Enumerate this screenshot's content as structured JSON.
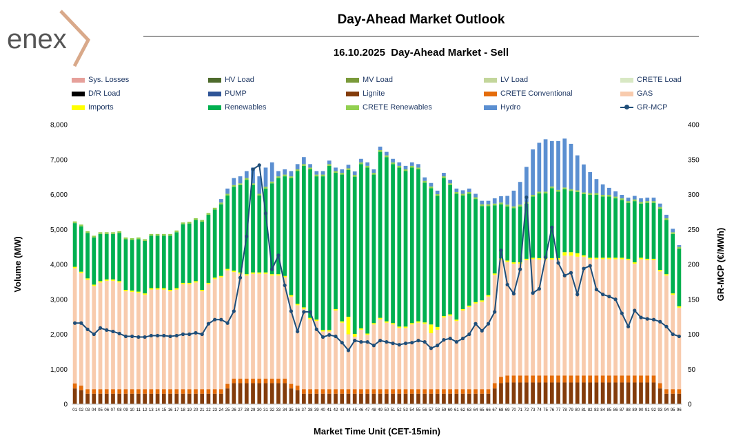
{
  "header": {
    "title": "Day-Ahead Market Outlook",
    "subtitle": "16.10.2025  Day-Ahead Market - Sell",
    "logo_text": "enex"
  },
  "colors": {
    "sys_losses": "#e6a09a",
    "hv_load": "#4e6b2c",
    "mv_load": "#7a9a3a",
    "lv_load": "#c3d69b",
    "crete_load": "#d8e8c4",
    "dr_load": "#000000",
    "pump": "#2f5597",
    "lignite": "#833c0b",
    "crete_conventional": "#e46c0a",
    "gas": "#f8cbad",
    "imports": "#ffff00",
    "renewables": "#00b050",
    "crete_renewables": "#92d050",
    "hydro": "#5b8fd1",
    "gr_mcp": "#1f4e79"
  },
  "legend": [
    {
      "key": "sys_losses",
      "label": "Sys. Losses",
      "kind": "bar"
    },
    {
      "key": "hv_load",
      "label": "HV Load",
      "kind": "bar"
    },
    {
      "key": "mv_load",
      "label": "MV Load",
      "kind": "bar"
    },
    {
      "key": "lv_load",
      "label": "LV Load",
      "kind": "bar"
    },
    {
      "key": "crete_load",
      "label": "CRETE Load",
      "kind": "bar"
    },
    {
      "key": "dr_load",
      "label": "D/R Load",
      "kind": "bar"
    },
    {
      "key": "pump",
      "label": "PUMP",
      "kind": "bar"
    },
    {
      "key": "lignite",
      "label": "Lignite",
      "kind": "bar"
    },
    {
      "key": "crete_conventional",
      "label": "CRETE Conventional",
      "kind": "bar"
    },
    {
      "key": "gas",
      "label": "GAS",
      "kind": "bar"
    },
    {
      "key": "imports",
      "label": "Imports",
      "kind": "bar"
    },
    {
      "key": "renewables",
      "label": "Renewables",
      "kind": "bar"
    },
    {
      "key": "crete_renewables",
      "label": "CRETE Renewables",
      "kind": "bar"
    },
    {
      "key": "hydro",
      "label": "Hydro",
      "kind": "bar"
    },
    {
      "key": "gr_mcp",
      "label": "GR-MCP",
      "kind": "line"
    }
  ],
  "chart_data": {
    "type": "bar",
    "stacked": true,
    "title": "16.10.2025  Day-Ahead Market - Sell",
    "xlabel": "Market Time Unit (CET-15min)",
    "ylabel": "Volume (MW)",
    "y2label": "GR-MCP (€/MWh)",
    "ylim": [
      0,
      8000
    ],
    "y2lim": [
      0,
      400
    ],
    "yticks": [
      "0",
      "1,000",
      "2,000",
      "3,000",
      "4,000",
      "5,000",
      "6,000",
      "7,000",
      "8,000"
    ],
    "y2ticks": [
      "0",
      "50",
      "100",
      "150",
      "200",
      "250",
      "300",
      "350",
      "400"
    ],
    "categories": [
      "01",
      "02",
      "03",
      "04",
      "05",
      "06",
      "07",
      "08",
      "09",
      "10",
      "11",
      "12",
      "13",
      "14",
      "15",
      "16",
      "17",
      "18",
      "19",
      "20",
      "21",
      "22",
      "23",
      "24",
      "25",
      "26",
      "27",
      "28",
      "29",
      "30",
      "31",
      "32",
      "33",
      "34",
      "35",
      "36",
      "37",
      "38",
      "39",
      "40",
      "41",
      "42",
      "43",
      "44",
      "45",
      "46",
      "47",
      "48",
      "49",
      "50",
      "51",
      "52",
      "53",
      "54",
      "55",
      "56",
      "57",
      "58",
      "59",
      "60",
      "61",
      "62",
      "63",
      "64",
      "65",
      "66",
      "67",
      "68",
      "69",
      "70",
      "71",
      "72",
      "73",
      "74",
      "75",
      "76",
      "77",
      "78",
      "79",
      "80",
      "81",
      "82",
      "83",
      "84",
      "85",
      "86",
      "87",
      "88",
      "89",
      "90",
      "91",
      "92",
      "93",
      "94",
      "95",
      "96"
    ],
    "series": [
      {
        "name": "Lignite",
        "key": "lignite",
        "values": [
          450,
          400,
          300,
          300,
          300,
          300,
          300,
          300,
          300,
          300,
          300,
          300,
          300,
          300,
          300,
          300,
          300,
          300,
          300,
          300,
          300,
          300,
          300,
          300,
          450,
          600,
          600,
          600,
          600,
          600,
          600,
          600,
          600,
          600,
          450,
          400,
          300,
          300,
          300,
          300,
          300,
          300,
          300,
          300,
          300,
          300,
          300,
          300,
          300,
          300,
          300,
          300,
          300,
          300,
          300,
          300,
          300,
          300,
          300,
          300,
          300,
          300,
          300,
          300,
          300,
          300,
          450,
          600,
          620,
          620,
          620,
          620,
          620,
          620,
          620,
          620,
          620,
          620,
          620,
          620,
          620,
          620,
          620,
          620,
          620,
          620,
          620,
          620,
          620,
          620,
          620,
          620,
          450,
          300,
          300,
          300
        ]
      },
      {
        "name": "CRETE Conventional",
        "key": "crete_conventional",
        "values": [
          140,
          130,
          130,
          130,
          130,
          130,
          130,
          130,
          130,
          130,
          130,
          130,
          130,
          130,
          130,
          130,
          130,
          130,
          130,
          130,
          130,
          130,
          130,
          130,
          130,
          130,
          130,
          130,
          130,
          130,
          130,
          130,
          130,
          130,
          130,
          130,
          130,
          130,
          130,
          130,
          130,
          130,
          130,
          130,
          130,
          130,
          130,
          130,
          130,
          130,
          130,
          130,
          130,
          130,
          130,
          130,
          130,
          130,
          130,
          130,
          130,
          130,
          130,
          130,
          130,
          130,
          150,
          180,
          200,
          200,
          200,
          200,
          200,
          200,
          200,
          200,
          200,
          200,
          200,
          200,
          200,
          200,
          200,
          200,
          200,
          200,
          200,
          200,
          200,
          200,
          200,
          200,
          150,
          130,
          130,
          130
        ]
      },
      {
        "name": "GAS",
        "key": "gas",
        "values": [
          3300,
          3220,
          3130,
          2950,
          3050,
          3100,
          3100,
          3050,
          2800,
          2780,
          2750,
          2700,
          2850,
          2850,
          2850,
          2800,
          2850,
          3000,
          3000,
          3050,
          2800,
          3000,
          3150,
          3200,
          3250,
          3050,
          3000,
          2950,
          3000,
          3000,
          3000,
          2950,
          2950,
          2900,
          2500,
          2300,
          2300,
          2000,
          1950,
          1650,
          1650,
          2250,
          1900,
          1570,
          1500,
          1700,
          1550,
          1850,
          2000,
          1900,
          1850,
          1750,
          1750,
          1850,
          1900,
          1870,
          1600,
          1700,
          2050,
          2100,
          1950,
          2250,
          2350,
          2450,
          2500,
          2650,
          3100,
          3350,
          3250,
          3200,
          3200,
          3300,
          3330,
          3320,
          3320,
          3320,
          3320,
          3430,
          3430,
          3400,
          3400,
          3330,
          3330,
          3330,
          3330,
          3330,
          3330,
          3300,
          3200,
          3330,
          3300,
          3300,
          3200,
          3250,
          2700,
          2330
        ]
      },
      {
        "name": "Imports",
        "key": "imports",
        "values": [
          40,
          40,
          40,
          40,
          40,
          40,
          40,
          40,
          40,
          40,
          40,
          40,
          40,
          40,
          40,
          40,
          40,
          40,
          40,
          40,
          40,
          40,
          40,
          40,
          40,
          40,
          40,
          40,
          40,
          40,
          40,
          40,
          40,
          40,
          40,
          40,
          40,
          40,
          40,
          40,
          40,
          40,
          40,
          500,
          80,
          40,
          40,
          40,
          40,
          40,
          40,
          40,
          40,
          40,
          40,
          40,
          250,
          80,
          40,
          40,
          40,
          40,
          40,
          40,
          40,
          40,
          40,
          40,
          40,
          40,
          40,
          40,
          40,
          40,
          40,
          40,
          40,
          100,
          100,
          100,
          40,
          40,
          40,
          40,
          40,
          40,
          40,
          40,
          40,
          40,
          40,
          40,
          40,
          40,
          40,
          40
        ]
      },
      {
        "name": "Renewables",
        "key": "renewables",
        "values": [
          1250,
          1300,
          1300,
          1350,
          1350,
          1300,
          1300,
          1380,
          1450,
          1450,
          1500,
          1500,
          1500,
          1500,
          1500,
          1550,
          1600,
          1680,
          1700,
          1750,
          1950,
          1950,
          1950,
          2050,
          2100,
          2400,
          2500,
          2700,
          2500,
          2200,
          2400,
          2600,
          2750,
          2850,
          3350,
          3800,
          4050,
          4250,
          4100,
          4400,
          4700,
          3900,
          4200,
          4200,
          4500,
          4700,
          4750,
          4250,
          4750,
          4700,
          4550,
          4550,
          4450,
          4450,
          4350,
          4000,
          3900,
          3750,
          3950,
          3700,
          3600,
          3250,
          3200,
          2950,
          2700,
          2550,
          1950,
          1550,
          1550,
          1550,
          1600,
          1580,
          1750,
          1850,
          1850,
          2000,
          1900,
          1800,
          1750,
          1750,
          1750,
          1800,
          1800,
          1750,
          1750,
          1700,
          1650,
          1600,
          1750,
          1550,
          1600,
          1600,
          1750,
          1550,
          1700,
          1650
        ]
      },
      {
        "name": "CRETE Renewables",
        "key": "crete_renewables",
        "values": [
          50,
          50,
          50,
          50,
          50,
          50,
          50,
          50,
          50,
          50,
          50,
          50,
          50,
          50,
          50,
          50,
          50,
          50,
          50,
          50,
          50,
          50,
          50,
          50,
          50,
          50,
          50,
          50,
          50,
          50,
          50,
          50,
          50,
          50,
          50,
          50,
          50,
          50,
          50,
          50,
          50,
          50,
          50,
          50,
          50,
          50,
          50,
          50,
          50,
          50,
          50,
          50,
          50,
          50,
          50,
          50,
          50,
          50,
          50,
          50,
          50,
          50,
          50,
          50,
          50,
          50,
          50,
          50,
          50,
          50,
          50,
          50,
          50,
          50,
          50,
          50,
          50,
          50,
          50,
          50,
          50,
          50,
          50,
          50,
          50,
          50,
          50,
          50,
          50,
          50,
          50,
          50,
          50,
          50,
          50,
          50
        ]
      },
      {
        "name": "Hydro",
        "key": "hydro",
        "values": [
          0,
          0,
          0,
          0,
          0,
          0,
          0,
          0,
          0,
          0,
          0,
          0,
          0,
          0,
          0,
          0,
          0,
          0,
          0,
          0,
          0,
          0,
          0,
          100,
          150,
          200,
          200,
          200,
          450,
          500,
          550,
          550,
          150,
          150,
          150,
          150,
          200,
          100,
          100,
          100,
          100,
          100,
          100,
          100,
          100,
          100,
          100,
          100,
          100,
          100,
          100,
          100,
          100,
          100,
          100,
          100,
          100,
          100,
          100,
          100,
          100,
          100,
          100,
          100,
          100,
          100,
          150,
          180,
          250,
          450,
          650,
          1000,
          1300,
          1400,
          1500,
          1300,
          1400,
          1400,
          1300,
          1000,
          800,
          600,
          400,
          300,
          200,
          150,
          100,
          100,
          100,
          100,
          100,
          100,
          100,
          100,
          100,
          50
        ]
      }
    ],
    "line": {
      "name": "GR-MCP",
      "key": "gr_mcp",
      "axis": "y2",
      "values": [
        116,
        116,
        107,
        100,
        109,
        106,
        104,
        101,
        97,
        97,
        96,
        96,
        98,
        98,
        98,
        97,
        98,
        100,
        100,
        102,
        100,
        115,
        121,
        121,
        116,
        133,
        181,
        240,
        336,
        342,
        273,
        193,
        213,
        170,
        133,
        104,
        132,
        132,
        107,
        96,
        99,
        97,
        88,
        77,
        91,
        89,
        89,
        84,
        91,
        89,
        87,
        85,
        87,
        88,
        91,
        89,
        80,
        84,
        92,
        94,
        89,
        94,
        100,
        115,
        105,
        115,
        132,
        220,
        171,
        158,
        193,
        296,
        159,
        165,
        210,
        253,
        202,
        184,
        188,
        157,
        194,
        198,
        164,
        157,
        154,
        150,
        130,
        111,
        134,
        124,
        122,
        121,
        118,
        111,
        100,
        97
      ]
    }
  }
}
